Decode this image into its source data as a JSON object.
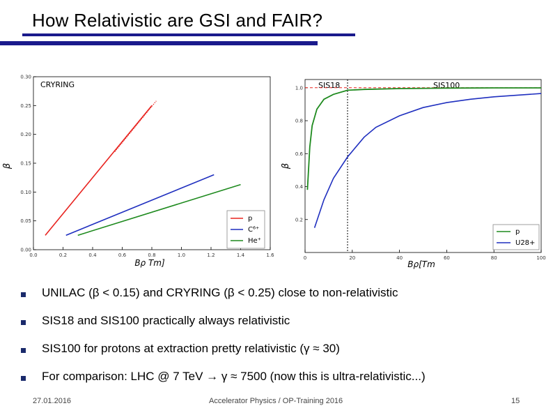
{
  "slide": {
    "title": "How Relativistic are GSI and FAIR?",
    "bullets": [
      "UNILAC (β < 0.15) and CRYRING (β < 0.25) close to non-relativistic",
      "SIS18 and SIS100 practically always relativistic",
      "SIS100 for protons at extraction pretty relativistic (γ ≈ 30)",
      "For comparison: LHC @ 7 TeV → γ ≈ 7500 (now this is ultra-relativistic...)"
    ],
    "footer": {
      "date": "27.01.2016",
      "center": "Accelerator Physics / OP-Training 2016",
      "page": "15"
    }
  },
  "colors": {
    "accent": "#1a1a8c",
    "red": "#e8231f",
    "blue": "#1f2fbf",
    "green": "#1e8a1e"
  },
  "chart_data": [
    {
      "type": "line",
      "annotation": "CRYRING",
      "xlabel": "Bρ Tm]",
      "ylabel": "β",
      "xlim": [
        0.0,
        1.6
      ],
      "ylim": [
        0.0,
        0.3
      ],
      "xticks": [
        0.0,
        0.2,
        0.4,
        0.6,
        0.8,
        1.0,
        1.2,
        1.4,
        1.6
      ],
      "xtick_labels": [
        "0.0",
        "0.2",
        "0.4",
        "0.6",
        "0.8",
        "1.0",
        "1.2",
        "1.4",
        "1.6"
      ],
      "yticks": [
        0.0,
        0.05,
        0.1,
        0.15,
        0.2,
        0.25,
        0.3
      ],
      "ytick_labels": [
        "0.00",
        "0.05",
        "0.10",
        "0.15",
        "0.20",
        "0.25",
        "0.30"
      ],
      "legend_position": "bottom-right",
      "series": [
        {
          "name": "p",
          "color": "#e8231f",
          "x": [
            0.08,
            0.8
          ],
          "y": [
            0.025,
            0.25
          ]
        },
        {
          "name": "C⁶⁺",
          "color": "#1f2fbf",
          "x": [
            0.22,
            1.22
          ],
          "y": [
            0.025,
            0.13
          ]
        },
        {
          "name": "He⁺",
          "color": "#1e8a1e",
          "x": [
            0.3,
            1.4
          ],
          "y": [
            0.025,
            0.113
          ]
        }
      ],
      "extra": {
        "dotted_red_extension": {
          "x": [
            0.55,
            0.83
          ],
          "y": [
            0.17,
            0.258
          ]
        }
      }
    },
    {
      "type": "line",
      "annotations": [
        "SIS18",
        "SIS100"
      ],
      "xlabel": "Bρ[Tm",
      "ylabel": "β",
      "xlim": [
        0,
        100
      ],
      "ylim": [
        0.0,
        1.05
      ],
      "xticks": [
        0,
        20,
        40,
        60,
        80,
        100
      ],
      "xtick_labels": [
        "0",
        "20",
        "40",
        "60",
        "80",
        "100"
      ],
      "yticks": [
        0.2,
        0.4,
        0.6,
        0.8,
        1.0
      ],
      "ytick_labels": [
        "0.2",
        "0.4",
        "0.6",
        "0.8",
        "1.0"
      ],
      "reference_line_y": 1.0,
      "separator_x": 18,
      "legend_position": "bottom-right",
      "series": [
        {
          "name": "p",
          "color": "#1e8a1e",
          "x": [
            1,
            2,
            3,
            5,
            8,
            12,
            18,
            25,
            40,
            60,
            80,
            100
          ],
          "y": [
            0.38,
            0.64,
            0.77,
            0.87,
            0.93,
            0.96,
            0.985,
            0.99,
            0.995,
            0.998,
            0.999,
            0.999
          ]
        },
        {
          "name": "U28+",
          "color": "#1f2fbf",
          "x": [
            4,
            8,
            12,
            18,
            25,
            30,
            40,
            50,
            60,
            70,
            80,
            90,
            100
          ],
          "y": [
            0.15,
            0.32,
            0.45,
            0.58,
            0.7,
            0.76,
            0.83,
            0.88,
            0.91,
            0.93,
            0.945,
            0.955,
            0.965
          ]
        }
      ]
    }
  ]
}
